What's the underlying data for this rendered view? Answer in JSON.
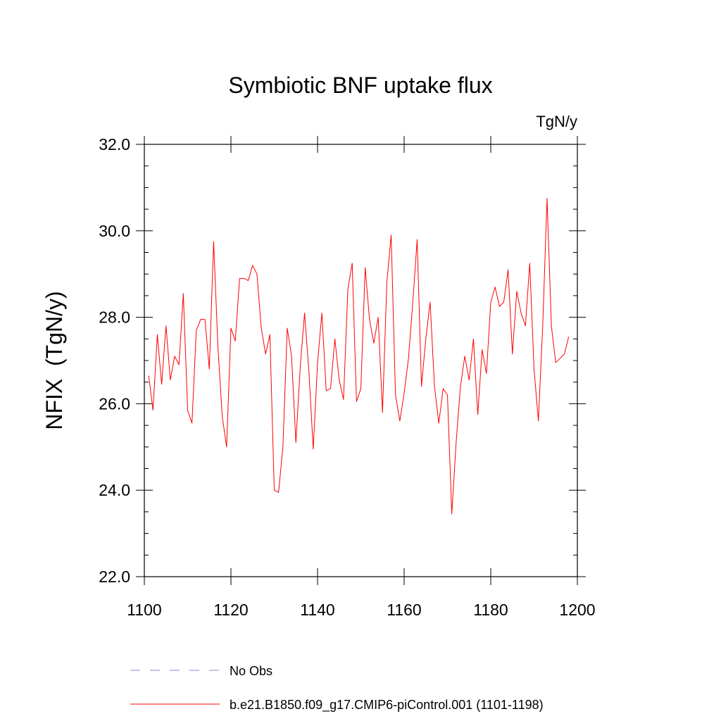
{
  "chart_data": {
    "type": "line",
    "title": "Symbiotic BNF uptake flux",
    "units_label": "TgN/y",
    "xlabel": "",
    "ylabel": "NFIX  (TgN/y)",
    "xlim": [
      1100,
      1200
    ],
    "ylim": [
      22.0,
      32.0
    ],
    "x_ticks": [
      1100,
      1120,
      1140,
      1160,
      1180,
      1200
    ],
    "x_tick_labels": [
      "1100",
      "1120",
      "1140",
      "1160",
      "1180",
      "1200"
    ],
    "y_ticks": [
      22.0,
      24.0,
      26.0,
      28.0,
      30.0,
      32.0
    ],
    "y_tick_labels": [
      "22.0",
      "24.0",
      "26.0",
      "28.0",
      "30.0",
      "32.0"
    ],
    "grid": false,
    "legend_position": "bottom",
    "series": [
      {
        "name": "b.e21.B1850.f09_g17.CMIP6-piControl.001 (1101-1198)",
        "color": "#ff0000",
        "style": "solid",
        "x": [
          1101,
          1102,
          1103,
          1104,
          1105,
          1106,
          1107,
          1108,
          1109,
          1110,
          1111,
          1112,
          1113,
          1114,
          1115,
          1116,
          1117,
          1118,
          1119,
          1120,
          1121,
          1122,
          1123,
          1124,
          1125,
          1126,
          1127,
          1128,
          1129,
          1130,
          1131,
          1132,
          1133,
          1134,
          1135,
          1136,
          1137,
          1138,
          1139,
          1140,
          1141,
          1142,
          1143,
          1144,
          1145,
          1146,
          1147,
          1148,
          1149,
          1150,
          1151,
          1152,
          1153,
          1154,
          1155,
          1156,
          1157,
          1158,
          1159,
          1160,
          1161,
          1162,
          1163,
          1164,
          1165,
          1166,
          1167,
          1168,
          1169,
          1170,
          1171,
          1172,
          1173,
          1174,
          1175,
          1176,
          1177,
          1178,
          1179,
          1180,
          1181,
          1182,
          1183,
          1184,
          1185,
          1186,
          1187,
          1188,
          1189,
          1190,
          1191,
          1192,
          1193,
          1194,
          1195,
          1196,
          1197,
          1198
        ],
        "y": [
          26.65,
          25.85,
          27.6,
          26.45,
          27.8,
          26.55,
          27.1,
          26.9,
          28.55,
          25.85,
          25.55,
          27.7,
          27.95,
          27.95,
          26.8,
          29.75,
          27.3,
          25.7,
          25.0,
          27.75,
          27.45,
          28.9,
          28.9,
          28.85,
          29.2,
          29.0,
          27.75,
          27.15,
          27.6,
          24.0,
          23.95,
          25.0,
          27.75,
          27.1,
          25.1,
          26.85,
          28.1,
          26.75,
          24.95,
          26.95,
          28.1,
          26.3,
          26.35,
          27.5,
          26.55,
          26.1,
          28.65,
          29.25,
          26.05,
          26.35,
          29.15,
          27.95,
          27.4,
          28.0,
          25.8,
          28.8,
          29.9,
          26.2,
          25.6,
          26.25,
          27.05,
          28.35,
          29.8,
          26.4,
          27.5,
          28.35,
          26.4,
          25.55,
          26.35,
          26.2,
          23.45,
          25.1,
          26.4,
          27.1,
          26.55,
          27.5,
          25.75,
          27.25,
          26.7,
          28.35,
          28.7,
          28.25,
          28.35,
          29.1,
          27.15,
          28.6,
          28.1,
          27.8,
          29.25,
          26.8,
          25.6,
          27.8,
          30.75,
          27.8,
          26.95,
          27.05,
          27.15,
          27.55
        ]
      },
      {
        "name": "No Obs",
        "color": "#8a8ad8",
        "style": "dashed",
        "x": [],
        "y": []
      }
    ]
  }
}
